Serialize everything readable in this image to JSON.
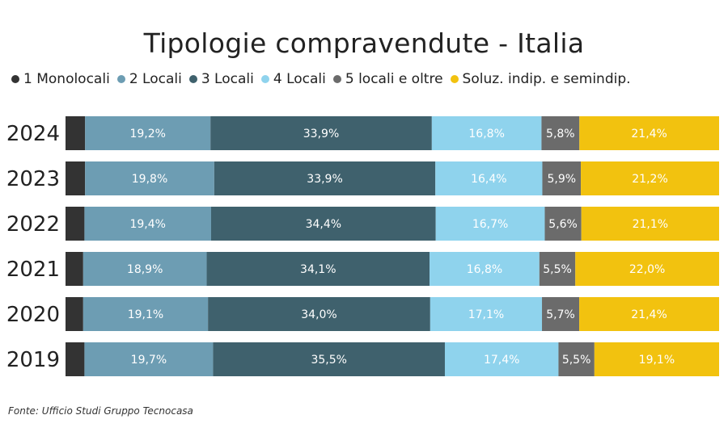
{
  "chart_data": {
    "type": "bar",
    "orientation": "horizontal",
    "stacked": true,
    "normalized": true,
    "title": "Tipologie compravendute - Italia",
    "legend_position": "top",
    "categories": [
      "2024",
      "2023",
      "2022",
      "2021",
      "2020",
      "2019"
    ],
    "series": [
      {
        "name": "1 Monolocali",
        "color": "#333333",
        "values": [
          3.0,
          3.0,
          2.9,
          2.7,
          2.7,
          2.9
        ],
        "labels": [
          "",
          "",
          "",
          "",
          "",
          ""
        ]
      },
      {
        "name": "2 Locali",
        "color": "#6d9db3",
        "values": [
          19.2,
          19.8,
          19.4,
          18.9,
          19.1,
          19.7
        ],
        "labels": [
          "19,2%",
          "19,8%",
          "19,4%",
          "18,9%",
          "19,1%",
          "19,7%"
        ]
      },
      {
        "name": "3 Locali",
        "color": "#3f616d",
        "values": [
          33.9,
          33.9,
          34.4,
          34.1,
          34.0,
          35.5
        ],
        "labels": [
          "33,9%",
          "33,9%",
          "34,4%",
          "34,1%",
          "34,0%",
          "35,5%"
        ]
      },
      {
        "name": "4 Locali",
        "color": "#8fd3ed",
        "values": [
          16.8,
          16.4,
          16.7,
          16.8,
          17.1,
          17.4
        ],
        "labels": [
          "16,8%",
          "16,4%",
          "16,7%",
          "16,8%",
          "17,1%",
          "17,4%"
        ]
      },
      {
        "name": "5 locali e oltre",
        "color": "#6b6b6b",
        "values": [
          5.8,
          5.9,
          5.6,
          5.5,
          5.7,
          5.5
        ],
        "labels": [
          "5,8%",
          "5,9%",
          "5,6%",
          "5,5%",
          "5,7%",
          "5,5%"
        ]
      },
      {
        "name": "Soluz. indip. e semindip.",
        "color": "#f2c20f",
        "values": [
          21.4,
          21.2,
          21.1,
          22.0,
          21.4,
          19.1
        ],
        "labels": [
          "21,4%",
          "21,2%",
          "21,1%",
          "22,0%",
          "21,4%",
          "19,1%"
        ]
      }
    ]
  },
  "source": "Fonte: Ufficio Studi Gruppo Tecnocasa"
}
